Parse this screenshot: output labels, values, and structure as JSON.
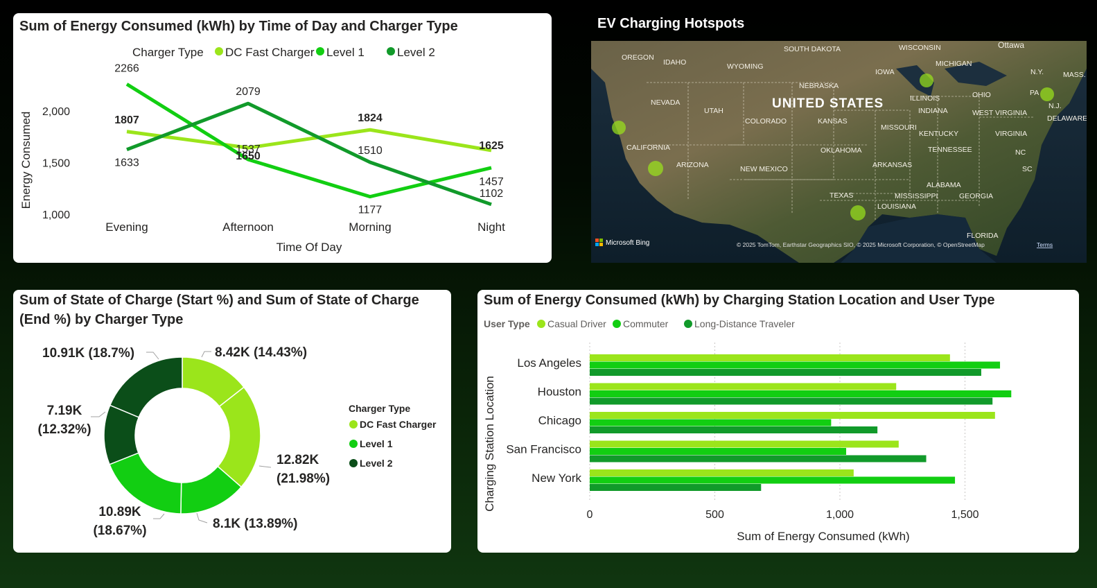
{
  "line_chart": {
    "title": "Sum of Energy Consumed (kWh) by Time of Day and Charger Type",
    "legend_title": "Charger Type",
    "xlabel": "Time Of Day",
    "ylabel": "Energy Consumed",
    "y_ticks": [
      "2,000",
      "1,500",
      "1,000"
    ]
  },
  "map": {
    "title": "EV Charging Hotspots",
    "country_label": "UNITED STATES",
    "labels": [
      "OREGON",
      "IDAHO",
      "SOUTH DAKOTA",
      "WISCONSIN",
      "MICHIGAN",
      "Ottawa",
      "WYOMING",
      "NEBRASKA",
      "IOWA",
      "NEVADA",
      "UTAH",
      "ILLINOIS",
      "OHIO",
      "PA",
      "N.Y.",
      "MASS.",
      "N.J.",
      "COLORADO",
      "KANSAS",
      "MISSOURI",
      "INDIANA",
      "WEST VIRGINIA",
      "DELAWARE",
      "CALIFORNIA",
      "KENTUCKY",
      "VIRGINIA",
      "OKLAHOMA",
      "TENNESSEE",
      "NC",
      "ARIZONA",
      "NEW MEXICO",
      "ARKANSAS",
      "SC",
      "ALABAMA",
      "MISSISSIPPI",
      "GEORGIA",
      "TEXAS",
      "LOUISIANA",
      "FLORIDA"
    ],
    "brand": "Microsoft Bing",
    "attribution": "© 2025 TomTom, Earthstar Geographics SIO, © 2025 Microsoft Corporation, © OpenStreetMap",
    "terms": "Terms"
  },
  "donut_chart": {
    "title_line1": "Sum of State of Charge (Start %) and Sum of State of Charge",
    "title_line2": "(End %) by Charger Type",
    "legend_title": "Charger Type"
  },
  "bar_chart": {
    "title": "Sum of Energy Consumed (kWh) by Charging Station Location and User Type",
    "legend_title": "User Type",
    "xlabel": "Sum of Energy Consumed (kWh)",
    "ylabel": "Charging Station Location",
    "x_ticks": [
      "0",
      "500",
      "1,000",
      "1,500"
    ]
  },
  "colors": {
    "dc_fast": "#9BE51B",
    "level1": "#12CE12",
    "level2": "#119A2A",
    "donut_level2": "#0B4E19",
    "casual": "#9BE51B",
    "commuter": "#12CE12",
    "longdistance": "#119A2A"
  },
  "chart_data": [
    {
      "type": "line",
      "title": "Sum of Energy Consumed (kWh) by Time of Day and Charger Type",
      "xlabel": "Time Of Day",
      "ylabel": "Energy Consumed",
      "categories": [
        "Evening",
        "Afternoon",
        "Morning",
        "Night"
      ],
      "series": [
        {
          "name": "DC Fast Charger",
          "values": [
            1807,
            1650,
            1824,
            1625
          ]
        },
        {
          "name": "Level 1",
          "values": [
            2266,
            1537,
            1177,
            1457
          ]
        },
        {
          "name": "Level 2",
          "values": [
            1633,
            2079,
            1510,
            1102
          ]
        }
      ],
      "ylim": [
        1000,
        2300
      ],
      "legend": "top"
    },
    {
      "type": "pie",
      "title": "Sum of State of Charge (Start %) and Sum of State of Charge (End %) by Charger Type",
      "slices": [
        {
          "series": "DC Fast Charger",
          "value": 8.42,
          "label": "8.42K (14.43%)"
        },
        {
          "series": "DC Fast Charger",
          "value": 12.82,
          "label": "12.82K (21.98%)"
        },
        {
          "series": "Level 1",
          "value": 8.1,
          "label": "8.1K (13.89%)"
        },
        {
          "series": "Level 1",
          "value": 10.89,
          "label": "10.89K (18.67%)"
        },
        {
          "series": "Level 2",
          "value": 7.19,
          "label": "7.19K (12.32%)"
        },
        {
          "series": "Level 2",
          "value": 10.91,
          "label": "10.91K (18.7%)"
        }
      ],
      "legend_items": [
        "DC Fast Charger",
        "Level 1",
        "Level 2"
      ],
      "legend": "right"
    },
    {
      "type": "bar",
      "orientation": "horizontal",
      "title": "Sum of Energy Consumed (kWh) by Charging Station Location and User Type",
      "xlabel": "Sum of Energy Consumed (kWh)",
      "ylabel": "Charging Station Location",
      "categories": [
        "Los Angeles",
        "Houston",
        "Chicago",
        "San Francisco",
        "New York"
      ],
      "series": [
        {
          "name": "Casual Driver",
          "values": [
            1440,
            1225,
            1620,
            1235,
            1055
          ]
        },
        {
          "name": "Commuter",
          "values": [
            1640,
            1685,
            965,
            1025,
            1460
          ]
        },
        {
          "name": "Long-Distance Traveler",
          "values": [
            1565,
            1610,
            1150,
            1345,
            685
          ]
        }
      ],
      "xlim": [
        0,
        1880
      ],
      "grid": true,
      "legend": "top-left"
    }
  ]
}
